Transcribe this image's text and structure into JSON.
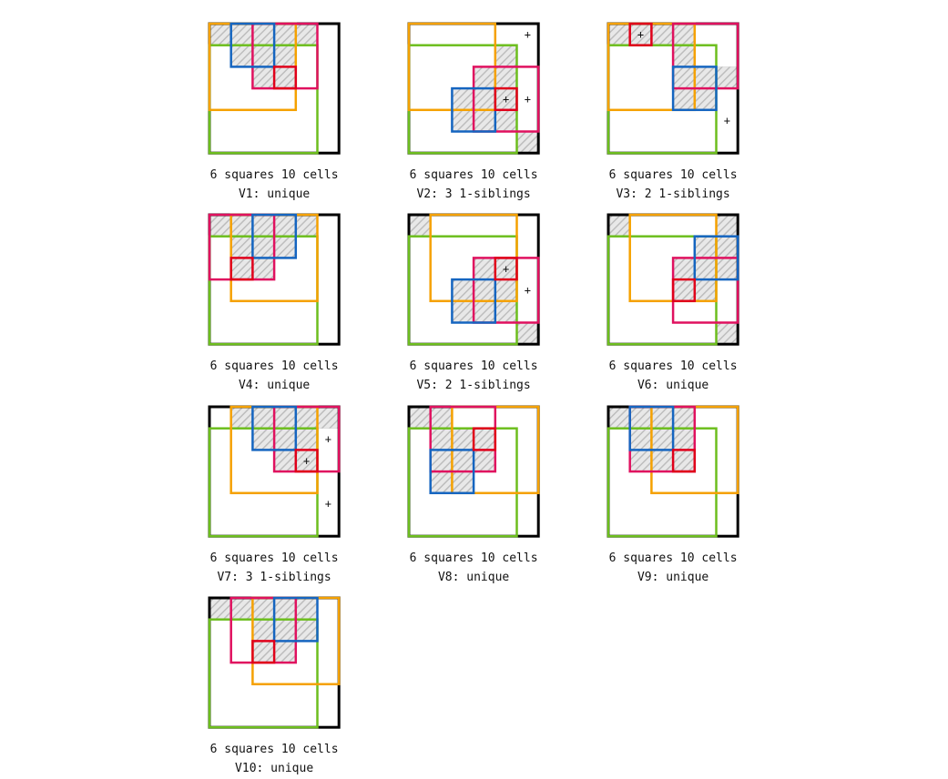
{
  "colors": {
    "black": "#000000",
    "orange": "#F5A100",
    "green": "#6DBE1E",
    "pink": "#E0115F",
    "blue": "#1565C0",
    "red": "#E0001A",
    "hatch_fill": "#E8E8E8",
    "hatch_line": "#BDBDBD"
  },
  "panels": [
    {
      "caption_line1": "6 squares 10 cells",
      "caption_line2": "V1: unique",
      "hatched": [
        [
          0,
          0
        ],
        [
          1,
          0
        ],
        [
          2,
          0
        ],
        [
          3,
          0
        ],
        [
          4,
          0
        ],
        [
          1,
          1
        ],
        [
          2,
          1
        ],
        [
          3,
          1
        ],
        [
          2,
          2
        ],
        [
          3,
          2
        ]
      ],
      "squares": [
        {
          "color": "black",
          "x": 0,
          "y": 0,
          "s": 6
        },
        {
          "color": "green",
          "x": 0,
          "y": 1,
          "s": 5
        },
        {
          "color": "orange",
          "x": 0,
          "y": 0,
          "s": 4
        },
        {
          "color": "pink",
          "x": 2,
          "y": 0,
          "s": 3
        },
        {
          "color": "blue",
          "x": 1,
          "y": 0,
          "s": 2
        },
        {
          "color": "red",
          "x": 3,
          "y": 2,
          "s": 1
        }
      ],
      "plus_marks": []
    },
    {
      "caption_line1": "6 squares 10 cells",
      "caption_line2": "V2: 3 1-siblings",
      "hatched": [
        [
          4,
          1
        ],
        [
          3,
          2
        ],
        [
          4,
          2
        ],
        [
          2,
          3
        ],
        [
          3,
          3
        ],
        [
          4,
          3
        ],
        [
          2,
          4
        ],
        [
          3,
          4
        ],
        [
          4,
          4
        ],
        [
          5,
          5
        ]
      ],
      "squares": [
        {
          "color": "black",
          "x": 0,
          "y": 0,
          "s": 6
        },
        {
          "color": "green",
          "x": 0,
          "y": 1,
          "s": 5
        },
        {
          "color": "orange",
          "x": 0,
          "y": 0,
          "s": 4
        },
        {
          "color": "pink",
          "x": 3,
          "y": 2,
          "s": 3
        },
        {
          "color": "blue",
          "x": 2,
          "y": 3,
          "s": 2
        },
        {
          "color": "red",
          "x": 4,
          "y": 3,
          "s": 1
        }
      ],
      "plus_marks": [
        [
          5,
          0
        ],
        [
          4,
          3
        ],
        [
          5,
          3
        ]
      ]
    },
    {
      "caption_line1": "6 squares 10 cells",
      "caption_line2": "V3: 2 1-siblings",
      "hatched": [
        [
          0,
          0
        ],
        [
          1,
          0
        ],
        [
          2,
          0
        ],
        [
          3,
          0
        ],
        [
          3,
          1
        ],
        [
          3,
          2
        ],
        [
          4,
          2
        ],
        [
          3,
          3
        ],
        [
          4,
          3
        ],
        [
          5,
          2
        ]
      ],
      "squares": [
        {
          "color": "black",
          "x": 0,
          "y": 0,
          "s": 6
        },
        {
          "color": "green",
          "x": 0,
          "y": 1,
          "s": 5
        },
        {
          "color": "orange",
          "x": 0,
          "y": 0,
          "s": 4
        },
        {
          "color": "pink",
          "x": 3,
          "y": 0,
          "s": 3
        },
        {
          "color": "blue",
          "x": 3,
          "y": 2,
          "s": 2
        },
        {
          "color": "red",
          "x": 1,
          "y": 0,
          "s": 1
        }
      ],
      "plus_marks": [
        [
          1,
          0
        ],
        [
          5,
          4
        ]
      ]
    },
    {
      "caption_line1": "6 squares 10 cells",
      "caption_line2": "V4: unique",
      "hatched": [
        [
          0,
          0
        ],
        [
          1,
          0
        ],
        [
          2,
          0
        ],
        [
          3,
          0
        ],
        [
          4,
          0
        ],
        [
          1,
          1
        ],
        [
          2,
          1
        ],
        [
          3,
          1
        ],
        [
          1,
          2
        ],
        [
          2,
          2
        ]
      ],
      "squares": [
        {
          "color": "black",
          "x": 0,
          "y": 0,
          "s": 6
        },
        {
          "color": "green",
          "x": 0,
          "y": 1,
          "s": 5
        },
        {
          "color": "orange",
          "x": 1,
          "y": 0,
          "s": 4
        },
        {
          "color": "pink",
          "x": 0,
          "y": 0,
          "s": 3
        },
        {
          "color": "blue",
          "x": 2,
          "y": 0,
          "s": 2
        },
        {
          "color": "red",
          "x": 1,
          "y": 2,
          "s": 1
        }
      ],
      "plus_marks": []
    },
    {
      "caption_line1": "6 squares 10 cells",
      "caption_line2": "V5: 2 1-siblings",
      "hatched": [
        [
          0,
          0
        ],
        [
          3,
          2
        ],
        [
          4,
          2
        ],
        [
          2,
          3
        ],
        [
          3,
          3
        ],
        [
          4,
          3
        ],
        [
          2,
          4
        ],
        [
          3,
          4
        ],
        [
          4,
          4
        ],
        [
          5,
          5
        ]
      ],
      "squares": [
        {
          "color": "black",
          "x": 0,
          "y": 0,
          "s": 6
        },
        {
          "color": "green",
          "x": 0,
          "y": 1,
          "s": 5
        },
        {
          "color": "orange",
          "x": 1,
          "y": 0,
          "s": 4
        },
        {
          "color": "pink",
          "x": 3,
          "y": 2,
          "s": 3
        },
        {
          "color": "blue",
          "x": 2,
          "y": 3,
          "s": 2
        },
        {
          "color": "red",
          "x": 4,
          "y": 2,
          "s": 1
        }
      ],
      "plus_marks": [
        [
          4,
          2
        ],
        [
          5,
          3
        ]
      ]
    },
    {
      "caption_line1": "6 squares 10 cells",
      "caption_line2": "V6: unique",
      "hatched": [
        [
          0,
          0
        ],
        [
          5,
          0
        ],
        [
          4,
          1
        ],
        [
          5,
          1
        ],
        [
          3,
          2
        ],
        [
          4,
          2
        ],
        [
          5,
          2
        ],
        [
          3,
          3
        ],
        [
          4,
          3
        ],
        [
          5,
          5
        ]
      ],
      "squares": [
        {
          "color": "black",
          "x": 0,
          "y": 0,
          "s": 6
        },
        {
          "color": "green",
          "x": 0,
          "y": 1,
          "s": 5
        },
        {
          "color": "orange",
          "x": 1,
          "y": 0,
          "s": 4
        },
        {
          "color": "pink",
          "x": 3,
          "y": 2,
          "s": 3
        },
        {
          "color": "blue",
          "x": 4,
          "y": 1,
          "s": 2
        },
        {
          "color": "red",
          "x": 3,
          "y": 3,
          "s": 1
        }
      ],
      "plus_marks": []
    },
    {
      "caption_line1": "6 squares 10 cells",
      "caption_line2": "V7: 3 1-siblings",
      "hatched": [
        [
          1,
          0
        ],
        [
          2,
          0
        ],
        [
          3,
          0
        ],
        [
          4,
          0
        ],
        [
          5,
          0
        ],
        [
          2,
          1
        ],
        [
          3,
          1
        ],
        [
          4,
          1
        ],
        [
          3,
          2
        ],
        [
          4,
          2
        ]
      ],
      "squares": [
        {
          "color": "black",
          "x": 0,
          "y": 0,
          "s": 6
        },
        {
          "color": "green",
          "x": 0,
          "y": 1,
          "s": 5
        },
        {
          "color": "orange",
          "x": 1,
          "y": 0,
          "s": 4
        },
        {
          "color": "pink",
          "x": 3,
          "y": 0,
          "s": 3
        },
        {
          "color": "blue",
          "x": 2,
          "y": 0,
          "s": 2
        },
        {
          "color": "red",
          "x": 4,
          "y": 2,
          "s": 1
        }
      ],
      "plus_marks": [
        [
          5,
          1
        ],
        [
          4,
          2
        ],
        [
          5,
          4
        ]
      ]
    },
    {
      "caption_line1": "6 squares 10 cells",
      "caption_line2": "V8: unique",
      "hatched": [
        [
          0,
          0
        ],
        [
          1,
          0
        ],
        [
          1,
          1
        ],
        [
          2,
          1
        ],
        [
          3,
          1
        ],
        [
          1,
          2
        ],
        [
          2,
          2
        ],
        [
          3,
          2
        ],
        [
          1,
          3
        ],
        [
          2,
          3
        ]
      ],
      "squares": [
        {
          "color": "black",
          "x": 0,
          "y": 0,
          "s": 6
        },
        {
          "color": "green",
          "x": 0,
          "y": 1,
          "s": 5
        },
        {
          "color": "orange",
          "x": 2,
          "y": 0,
          "s": 4
        },
        {
          "color": "pink",
          "x": 1,
          "y": 0,
          "s": 3
        },
        {
          "color": "blue",
          "x": 1,
          "y": 2,
          "s": 2
        },
        {
          "color": "red",
          "x": 3,
          "y": 1,
          "s": 1
        }
      ],
      "plus_marks": []
    },
    {
      "caption_line1": "6 squares 10 cells",
      "caption_line2": "V9: unique",
      "hatched": [
        [
          0,
          0
        ],
        [
          1,
          0
        ],
        [
          2,
          0
        ],
        [
          3,
          0
        ],
        [
          1,
          1
        ],
        [
          2,
          1
        ],
        [
          3,
          1
        ],
        [
          1,
          2
        ],
        [
          2,
          2
        ],
        [
          3,
          2
        ]
      ],
      "squares": [
        {
          "color": "black",
          "x": 0,
          "y": 0,
          "s": 6
        },
        {
          "color": "green",
          "x": 0,
          "y": 1,
          "s": 5
        },
        {
          "color": "orange",
          "x": 2,
          "y": 0,
          "s": 4
        },
        {
          "color": "pink",
          "x": 1,
          "y": 0,
          "s": 3
        },
        {
          "color": "blue",
          "x": 1,
          "y": 0,
          "s": 2
        },
        {
          "color": "red",
          "x": 3,
          "y": 2,
          "s": 1
        }
      ],
      "plus_marks": []
    },
    {
      "caption_line1": "6 squares 10 cells",
      "caption_line2": "V10: unique",
      "hatched": [
        [
          0,
          0
        ],
        [
          1,
          0
        ],
        [
          2,
          0
        ],
        [
          3,
          0
        ],
        [
          4,
          0
        ],
        [
          2,
          1
        ],
        [
          3,
          1
        ],
        [
          4,
          1
        ],
        [
          2,
          2
        ],
        [
          3,
          2
        ]
      ],
      "squares": [
        {
          "color": "black",
          "x": 0,
          "y": 0,
          "s": 6
        },
        {
          "color": "green",
          "x": 0,
          "y": 1,
          "s": 5
        },
        {
          "color": "orange",
          "x": 2,
          "y": 0,
          "s": 4
        },
        {
          "color": "pink",
          "x": 1,
          "y": 0,
          "s": 3
        },
        {
          "color": "blue",
          "x": 3,
          "y": 0,
          "s": 2
        },
        {
          "color": "red",
          "x": 2,
          "y": 2,
          "s": 1
        }
      ],
      "plus_marks": []
    }
  ]
}
